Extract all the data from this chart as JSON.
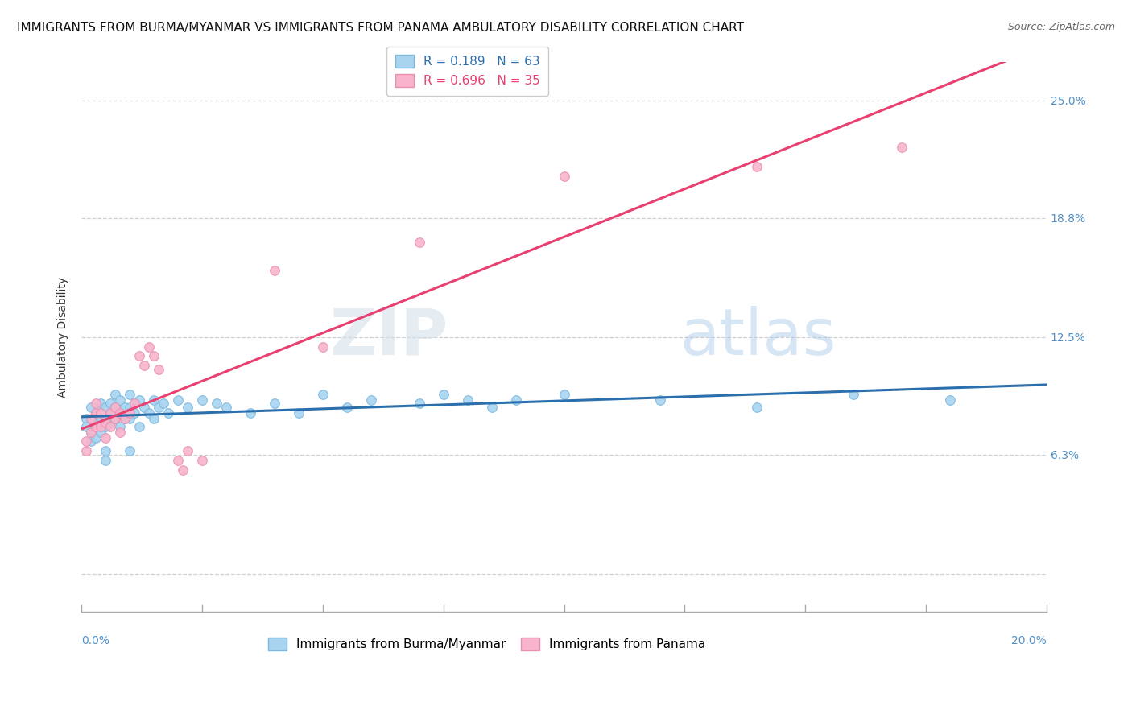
{
  "title": "IMMIGRANTS FROM BURMA/MYANMAR VS IMMIGRANTS FROM PANAMA AMBULATORY DISABILITY CORRELATION CHART",
  "source": "Source: ZipAtlas.com",
  "ylabel": "Ambulatory Disability",
  "yticks": [
    0.0,
    0.063,
    0.125,
    0.188,
    0.25
  ],
  "ytick_labels": [
    "",
    "6.3%",
    "12.5%",
    "18.8%",
    "25.0%"
  ],
  "xlim": [
    0.0,
    0.2
  ],
  "ylim": [
    -0.02,
    0.27
  ],
  "blue_scatter": [
    [
      0.001,
      0.082
    ],
    [
      0.001,
      0.078
    ],
    [
      0.002,
      0.088
    ],
    [
      0.002,
      0.075
    ],
    [
      0.002,
      0.07
    ],
    [
      0.003,
      0.085
    ],
    [
      0.003,
      0.08
    ],
    [
      0.003,
      0.072
    ],
    [
      0.004,
      0.09
    ],
    [
      0.004,
      0.082
    ],
    [
      0.004,
      0.075
    ],
    [
      0.005,
      0.088
    ],
    [
      0.005,
      0.082
    ],
    [
      0.005,
      0.078
    ],
    [
      0.005,
      0.065
    ],
    [
      0.006,
      0.09
    ],
    [
      0.006,
      0.085
    ],
    [
      0.006,
      0.08
    ],
    [
      0.007,
      0.095
    ],
    [
      0.007,
      0.088
    ],
    [
      0.007,
      0.082
    ],
    [
      0.008,
      0.092
    ],
    [
      0.008,
      0.085
    ],
    [
      0.008,
      0.078
    ],
    [
      0.009,
      0.088
    ],
    [
      0.009,
      0.082
    ],
    [
      0.01,
      0.095
    ],
    [
      0.01,
      0.088
    ],
    [
      0.01,
      0.082
    ],
    [
      0.011,
      0.09
    ],
    [
      0.011,
      0.085
    ],
    [
      0.012,
      0.092
    ],
    [
      0.012,
      0.078
    ],
    [
      0.013,
      0.088
    ],
    [
      0.014,
      0.085
    ],
    [
      0.015,
      0.092
    ],
    [
      0.015,
      0.082
    ],
    [
      0.016,
      0.088
    ],
    [
      0.017,
      0.09
    ],
    [
      0.018,
      0.085
    ],
    [
      0.02,
      0.092
    ],
    [
      0.022,
      0.088
    ],
    [
      0.025,
      0.092
    ],
    [
      0.028,
      0.09
    ],
    [
      0.03,
      0.088
    ],
    [
      0.035,
      0.085
    ],
    [
      0.04,
      0.09
    ],
    [
      0.045,
      0.085
    ],
    [
      0.05,
      0.095
    ],
    [
      0.055,
      0.088
    ],
    [
      0.06,
      0.092
    ],
    [
      0.07,
      0.09
    ],
    [
      0.075,
      0.095
    ],
    [
      0.08,
      0.092
    ],
    [
      0.085,
      0.088
    ],
    [
      0.09,
      0.092
    ],
    [
      0.1,
      0.095
    ],
    [
      0.12,
      0.092
    ],
    [
      0.14,
      0.088
    ],
    [
      0.16,
      0.095
    ],
    [
      0.18,
      0.092
    ],
    [
      0.005,
      0.06
    ],
    [
      0.01,
      0.065
    ]
  ],
  "pink_scatter": [
    [
      0.001,
      0.07
    ],
    [
      0.001,
      0.065
    ],
    [
      0.002,
      0.082
    ],
    [
      0.002,
      0.075
    ],
    [
      0.003,
      0.09
    ],
    [
      0.003,
      0.085
    ],
    [
      0.003,
      0.078
    ],
    [
      0.004,
      0.085
    ],
    [
      0.004,
      0.078
    ],
    [
      0.005,
      0.08
    ],
    [
      0.005,
      0.072
    ],
    [
      0.006,
      0.085
    ],
    [
      0.006,
      0.078
    ],
    [
      0.007,
      0.088
    ],
    [
      0.007,
      0.082
    ],
    [
      0.008,
      0.085
    ],
    [
      0.008,
      0.075
    ],
    [
      0.009,
      0.082
    ],
    [
      0.01,
      0.085
    ],
    [
      0.011,
      0.09
    ],
    [
      0.012,
      0.115
    ],
    [
      0.013,
      0.11
    ],
    [
      0.014,
      0.12
    ],
    [
      0.015,
      0.115
    ],
    [
      0.016,
      0.108
    ],
    [
      0.02,
      0.06
    ],
    [
      0.021,
      0.055
    ],
    [
      0.022,
      0.065
    ],
    [
      0.025,
      0.06
    ],
    [
      0.04,
      0.16
    ],
    [
      0.05,
      0.12
    ],
    [
      0.07,
      0.175
    ],
    [
      0.1,
      0.21
    ],
    [
      0.14,
      0.215
    ],
    [
      0.17,
      0.225
    ]
  ],
  "blue_color": "#a8d4f0",
  "pink_color": "#f8b4cc",
  "blue_line_color": "#2c6fad",
  "pink_line_color": "#e84070",
  "blue_R": 0.189,
  "pink_R": 0.696,
  "blue_N": 63,
  "pink_N": 35,
  "background_color": "#ffffff",
  "grid_color": "#d0d0d0",
  "title_fontsize": 11,
  "source_fontsize": 9,
  "axis_label_fontsize": 10,
  "tick_fontsize": 10,
  "legend_R_values": "R = 0.189   N = 63\nR = 0.696   N = 35"
}
